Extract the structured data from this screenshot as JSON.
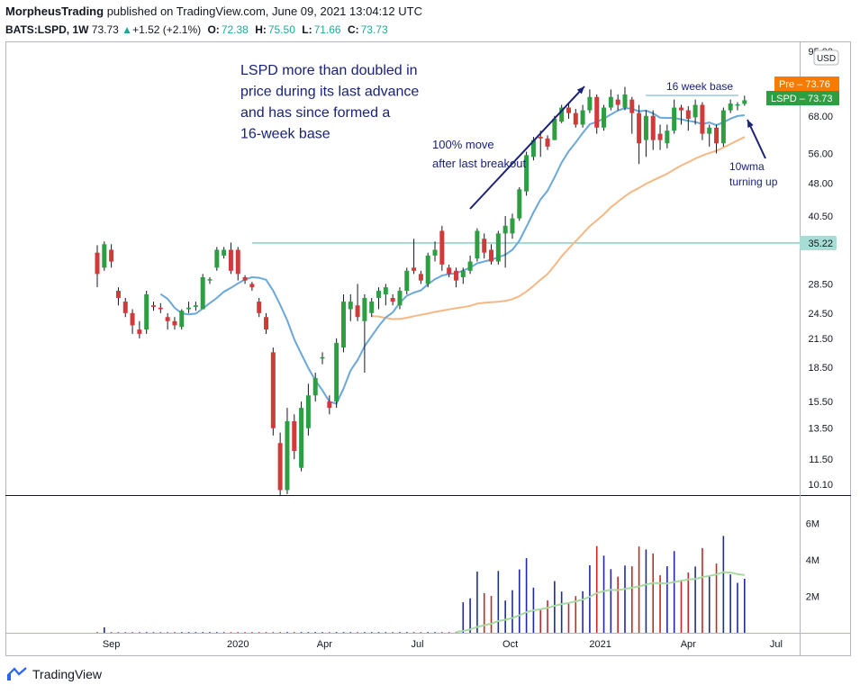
{
  "header": {
    "author": "MorpheusTrading",
    "published_text": "published on TradingView.com, June 09, 2021 13:04:12 UTC",
    "symbol": "BATS:LSPD, 1W",
    "last": "73.73",
    "change": "+1.52 (+2.1%)",
    "open_label": "O:",
    "open": "72.38",
    "high_label": "H:",
    "high": "75.50",
    "low_label": "L:",
    "low": "71.66",
    "close_label": "C:",
    "close": "73.73"
  },
  "footer": {
    "logo_text": "TradingView"
  },
  "colors": {
    "up": "#2e9e42",
    "down": "#d13a3a",
    "ma10": "#6aa8d8",
    "ma40": "#f6b784",
    "vol_up": "#1e2a9e",
    "vol_down": "#c0282a",
    "vol_ma": "#a8d9a0",
    "resistance": "#7fcac0",
    "annot": "#1a2278",
    "pre_badge": "#f57c00",
    "lspd_badge": "#2e9e42"
  },
  "chart_data": {
    "type": "candlestick",
    "price_scale_ticks": [
      "95.00",
      "68.00",
      "56.00",
      "48.00",
      "40.50",
      "35.22",
      "28.50",
      "24.50",
      "21.50",
      "18.50",
      "15.50",
      "13.50",
      "11.50",
      "10.10"
    ],
    "scale_mode": "log",
    "currency_label": "USD",
    "x_ticks": [
      "Sep",
      "2020",
      "Apr",
      "Jul",
      "Oct",
      "2021",
      "Apr",
      "Jul"
    ],
    "volume_ticks": [
      "6M",
      "4M",
      "2M"
    ],
    "badges": [
      {
        "label": "Pre",
        "value": "73.76"
      },
      {
        "label": "LSPD",
        "value": "73.73"
      }
    ],
    "resistance_level": 35.22,
    "candles": [
      {
        "o": 33.5,
        "h": 34.8,
        "l": 28.0,
        "c": 30.0
      },
      {
        "o": 31.0,
        "h": 35.5,
        "l": 30.5,
        "c": 35.0
      },
      {
        "o": 34.0,
        "h": 35.0,
        "l": 31.0,
        "c": 32.0
      },
      {
        "o": 27.5,
        "h": 28.0,
        "l": 25.5,
        "c": 26.5
      },
      {
        "o": 26.0,
        "h": 26.5,
        "l": 24.0,
        "c": 24.5
      },
      {
        "o": 24.5,
        "h": 25.0,
        "l": 22.0,
        "c": 23.0
      },
      {
        "o": 22.5,
        "h": 23.5,
        "l": 21.5,
        "c": 22.0
      },
      {
        "o": 22.5,
        "h": 27.5,
        "l": 22.0,
        "c": 27.0
      },
      {
        "o": 25.5,
        "h": 26.0,
        "l": 24.8,
        "c": 25.3
      },
      {
        "o": 25.2,
        "h": 25.8,
        "l": 24.5,
        "c": 25.0
      },
      {
        "o": 24.0,
        "h": 24.5,
        "l": 22.5,
        "c": 23.5
      },
      {
        "o": 23.5,
        "h": 24.0,
        "l": 22.5,
        "c": 23.0
      },
      {
        "o": 22.8,
        "h": 25.0,
        "l": 22.5,
        "c": 24.8
      },
      {
        "o": 25.0,
        "h": 26.0,
        "l": 24.5,
        "c": 25.2
      },
      {
        "o": 25.3,
        "h": 26.0,
        "l": 24.8,
        "c": 25.5
      },
      {
        "o": 25.0,
        "h": 30.0,
        "l": 25.0,
        "c": 29.5
      },
      {
        "o": 29.0,
        "h": 29.5,
        "l": 28.5,
        "c": 29.2
      },
      {
        "o": 31.0,
        "h": 34.5,
        "l": 30.5,
        "c": 34.0
      },
      {
        "o": 33.0,
        "h": 34.5,
        "l": 32.5,
        "c": 34.0
      },
      {
        "o": 34.0,
        "h": 35.3,
        "l": 30.0,
        "c": 30.5
      },
      {
        "o": 34.0,
        "h": 34.5,
        "l": 29.0,
        "c": 30.0
      },
      {
        "o": 29.5,
        "h": 29.8,
        "l": 28.5,
        "c": 29.0
      },
      {
        "o": 28.5,
        "h": 28.8,
        "l": 27.5,
        "c": 28.0
      },
      {
        "o": 26.0,
        "h": 26.5,
        "l": 24.0,
        "c": 24.5
      },
      {
        "o": 24.0,
        "h": 24.5,
        "l": 22.0,
        "c": 22.5
      },
      {
        "o": 20.0,
        "h": 20.5,
        "l": 13.0,
        "c": 13.5
      },
      {
        "o": 12.5,
        "h": 13.2,
        "l": 9.5,
        "c": 9.8
      },
      {
        "o": 9.8,
        "h": 15.0,
        "l": 9.6,
        "c": 14.0
      },
      {
        "o": 14.0,
        "h": 14.5,
        "l": 11.5,
        "c": 12.0
      },
      {
        "o": 11.0,
        "h": 15.5,
        "l": 10.8,
        "c": 15.0
      },
      {
        "o": 13.5,
        "h": 17.0,
        "l": 13.0,
        "c": 16.0
      },
      {
        "o": 16.0,
        "h": 18.0,
        "l": 15.5,
        "c": 17.5
      },
      {
        "o": 19.5,
        "h": 20.0,
        "l": 18.8,
        "c": 19.5
      },
      {
        "o": 15.5,
        "h": 16.0,
        "l": 14.5,
        "c": 15.0
      },
      {
        "o": 15.5,
        "h": 21.5,
        "l": 15.0,
        "c": 21.0
      },
      {
        "o": 20.5,
        "h": 27.0,
        "l": 20.0,
        "c": 26.0
      },
      {
        "o": 25.0,
        "h": 27.0,
        "l": 23.5,
        "c": 26.0
      },
      {
        "o": 25.5,
        "h": 28.5,
        "l": 23.5,
        "c": 24.0
      },
      {
        "o": 23.5,
        "h": 27.0,
        "l": 18.0,
        "c": 26.5
      },
      {
        "o": 24.5,
        "h": 26.5,
        "l": 24.0,
        "c": 26.0
      },
      {
        "o": 26.5,
        "h": 28.0,
        "l": 25.0,
        "c": 27.5
      },
      {
        "o": 27.0,
        "h": 28.5,
        "l": 25.5,
        "c": 28.0
      },
      {
        "o": 26.5,
        "h": 27.0,
        "l": 25.5,
        "c": 26.0
      },
      {
        "o": 25.5,
        "h": 28.0,
        "l": 25.0,
        "c": 27.5
      },
      {
        "o": 27.5,
        "h": 31.0,
        "l": 27.0,
        "c": 30.5
      },
      {
        "o": 31.0,
        "h": 36.0,
        "l": 30.0,
        "c": 30.5
      },
      {
        "o": 30.0,
        "h": 30.5,
        "l": 28.5,
        "c": 29.0
      },
      {
        "o": 28.5,
        "h": 33.5,
        "l": 28.0,
        "c": 33.0
      },
      {
        "o": 33.0,
        "h": 35.5,
        "l": 32.0,
        "c": 34.0
      },
      {
        "o": 37.5,
        "h": 38.5,
        "l": 30.5,
        "c": 31.5
      },
      {
        "o": 31.0,
        "h": 31.5,
        "l": 29.5,
        "c": 30.0
      },
      {
        "o": 30.5,
        "h": 31.0,
        "l": 28.0,
        "c": 29.0
      },
      {
        "o": 29.5,
        "h": 31.0,
        "l": 28.5,
        "c": 30.5
      },
      {
        "o": 30.5,
        "h": 33.0,
        "l": 30.0,
        "c": 32.0
      },
      {
        "o": 32.5,
        "h": 38.0,
        "l": 32.0,
        "c": 37.5
      },
      {
        "o": 36.0,
        "h": 37.0,
        "l": 32.5,
        "c": 33.5
      },
      {
        "o": 34.0,
        "h": 35.0,
        "l": 31.5,
        "c": 32.0
      },
      {
        "o": 32.0,
        "h": 37.5,
        "l": 31.5,
        "c": 37.0
      },
      {
        "o": 37.0,
        "h": 40.5,
        "l": 31.0,
        "c": 38.5
      },
      {
        "o": 37.0,
        "h": 41.0,
        "l": 36.0,
        "c": 40.0
      },
      {
        "o": 40.0,
        "h": 47.0,
        "l": 39.5,
        "c": 46.5
      },
      {
        "o": 46.0,
        "h": 56.5,
        "l": 45.0,
        "c": 55.5
      },
      {
        "o": 55.0,
        "h": 61.0,
        "l": 54.0,
        "c": 60.0
      },
      {
        "o": 61.0,
        "h": 63.0,
        "l": 55.0,
        "c": 60.5
      },
      {
        "o": 60.5,
        "h": 61.5,
        "l": 57.0,
        "c": 58.0
      },
      {
        "o": 60.0,
        "h": 68.0,
        "l": 60.0,
        "c": 67.0
      },
      {
        "o": 66.0,
        "h": 72.0,
        "l": 65.5,
        "c": 71.0
      },
      {
        "o": 71.0,
        "h": 73.0,
        "l": 67.0,
        "c": 69.0
      },
      {
        "o": 69.0,
        "h": 70.5,
        "l": 64.0,
        "c": 65.0
      },
      {
        "o": 65.0,
        "h": 72.0,
        "l": 64.0,
        "c": 70.0
      },
      {
        "o": 70.0,
        "h": 78.0,
        "l": 69.0,
        "c": 75.0
      },
      {
        "o": 75.0,
        "h": 76.0,
        "l": 62.0,
        "c": 64.0
      },
      {
        "o": 64.0,
        "h": 72.0,
        "l": 63.0,
        "c": 71.0
      },
      {
        "o": 71.0,
        "h": 78.0,
        "l": 70.0,
        "c": 75.0
      },
      {
        "o": 74.0,
        "h": 76.0,
        "l": 70.0,
        "c": 72.0
      },
      {
        "o": 71.0,
        "h": 79.0,
        "l": 70.0,
        "c": 76.0
      },
      {
        "o": 74.0,
        "h": 75.0,
        "l": 62.0,
        "c": 69.0
      },
      {
        "o": 69.0,
        "h": 72.0,
        "l": 53.0,
        "c": 59.0
      },
      {
        "o": 60.0,
        "h": 70.0,
        "l": 55.0,
        "c": 68.0
      },
      {
        "o": 68.0,
        "h": 70.0,
        "l": 57.0,
        "c": 60.0
      },
      {
        "o": 62.0,
        "h": 65.0,
        "l": 57.0,
        "c": 60.0
      },
      {
        "o": 59.0,
        "h": 65.0,
        "l": 57.5,
        "c": 63.0
      },
      {
        "o": 63.0,
        "h": 74.0,
        "l": 62.0,
        "c": 71.0
      },
      {
        "o": 71.0,
        "h": 72.0,
        "l": 65.0,
        "c": 70.0
      },
      {
        "o": 70.0,
        "h": 71.5,
        "l": 63.0,
        "c": 67.0
      },
      {
        "o": 67.5,
        "h": 74.0,
        "l": 65.0,
        "c": 72.0
      },
      {
        "o": 72.0,
        "h": 73.0,
        "l": 60.0,
        "c": 62.0
      },
      {
        "o": 62.0,
        "h": 65.0,
        "l": 58.0,
        "c": 64.0
      },
      {
        "o": 64.0,
        "h": 65.0,
        "l": 56.0,
        "c": 59.0
      },
      {
        "o": 59.0,
        "h": 71.0,
        "l": 58.0,
        "c": 70.0
      },
      {
        "o": 70.0,
        "h": 74.0,
        "l": 69.0,
        "c": 72.5
      },
      {
        "o": 72.0,
        "h": 73.0,
        "l": 70.0,
        "c": 72.2
      },
      {
        "o": 72.38,
        "h": 75.5,
        "l": 71.66,
        "c": 73.73
      }
    ],
    "annotations": [
      {
        "text": [
          "LSPD more than doubled in",
          "price during its last advance",
          "and has since formed a",
          "16-week base"
        ]
      },
      {
        "text": [
          "100% move",
          "after last breakout"
        ]
      },
      {
        "text": [
          "16 week base"
        ]
      },
      {
        "text": [
          "10wma",
          "turning up"
        ]
      }
    ]
  }
}
